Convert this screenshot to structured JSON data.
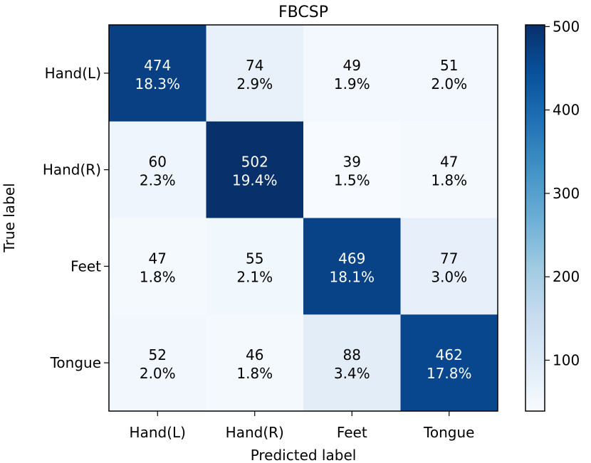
{
  "chart_data": {
    "type": "heatmap",
    "title": "FBCSP",
    "xlabel": "Predicted label",
    "ylabel": "True label",
    "x_categories": [
      "Hand(L)",
      "Hand(R)",
      "Feet",
      "Tongue"
    ],
    "y_categories": [
      "Hand(L)",
      "Hand(R)",
      "Feet",
      "Tongue"
    ],
    "values": [
      [
        474,
        74,
        49,
        51
      ],
      [
        60,
        502,
        39,
        47
      ],
      [
        47,
        55,
        469,
        77
      ],
      [
        52,
        46,
        88,
        462
      ]
    ],
    "percentages": [
      [
        "18.3%",
        "2.9%",
        "1.9%",
        "2.0%"
      ],
      [
        "2.3%",
        "19.4%",
        "1.5%",
        "1.8%"
      ],
      [
        "1.8%",
        "2.1%",
        "18.1%",
        "3.0%"
      ],
      [
        "2.0%",
        "1.8%",
        "3.4%",
        "17.8%"
      ]
    ],
    "colormap": "Blues",
    "color_range": [
      39,
      502
    ],
    "colorbar_ticks": [
      100,
      200,
      300,
      400,
      500
    ],
    "grid": false
  }
}
